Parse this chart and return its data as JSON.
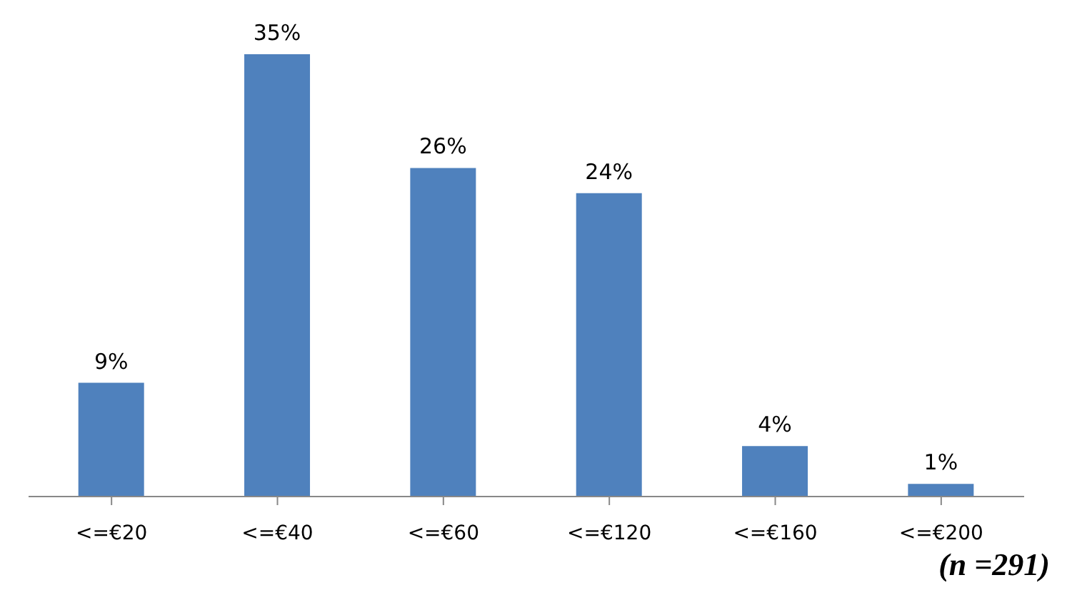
{
  "chart_data": {
    "type": "bar",
    "categories": [
      "<=€20",
      "<=€40",
      "<=€60",
      "<=€120",
      "<=€160",
      "<=€200"
    ],
    "values": [
      9,
      35,
      26,
      24,
      4,
      1
    ],
    "value_labels": [
      "9%",
      "35%",
      "26%",
      "24%",
      "4%",
      "1%"
    ],
    "color": "#4f81bd",
    "annotations": [
      "(n =291)"
    ]
  }
}
